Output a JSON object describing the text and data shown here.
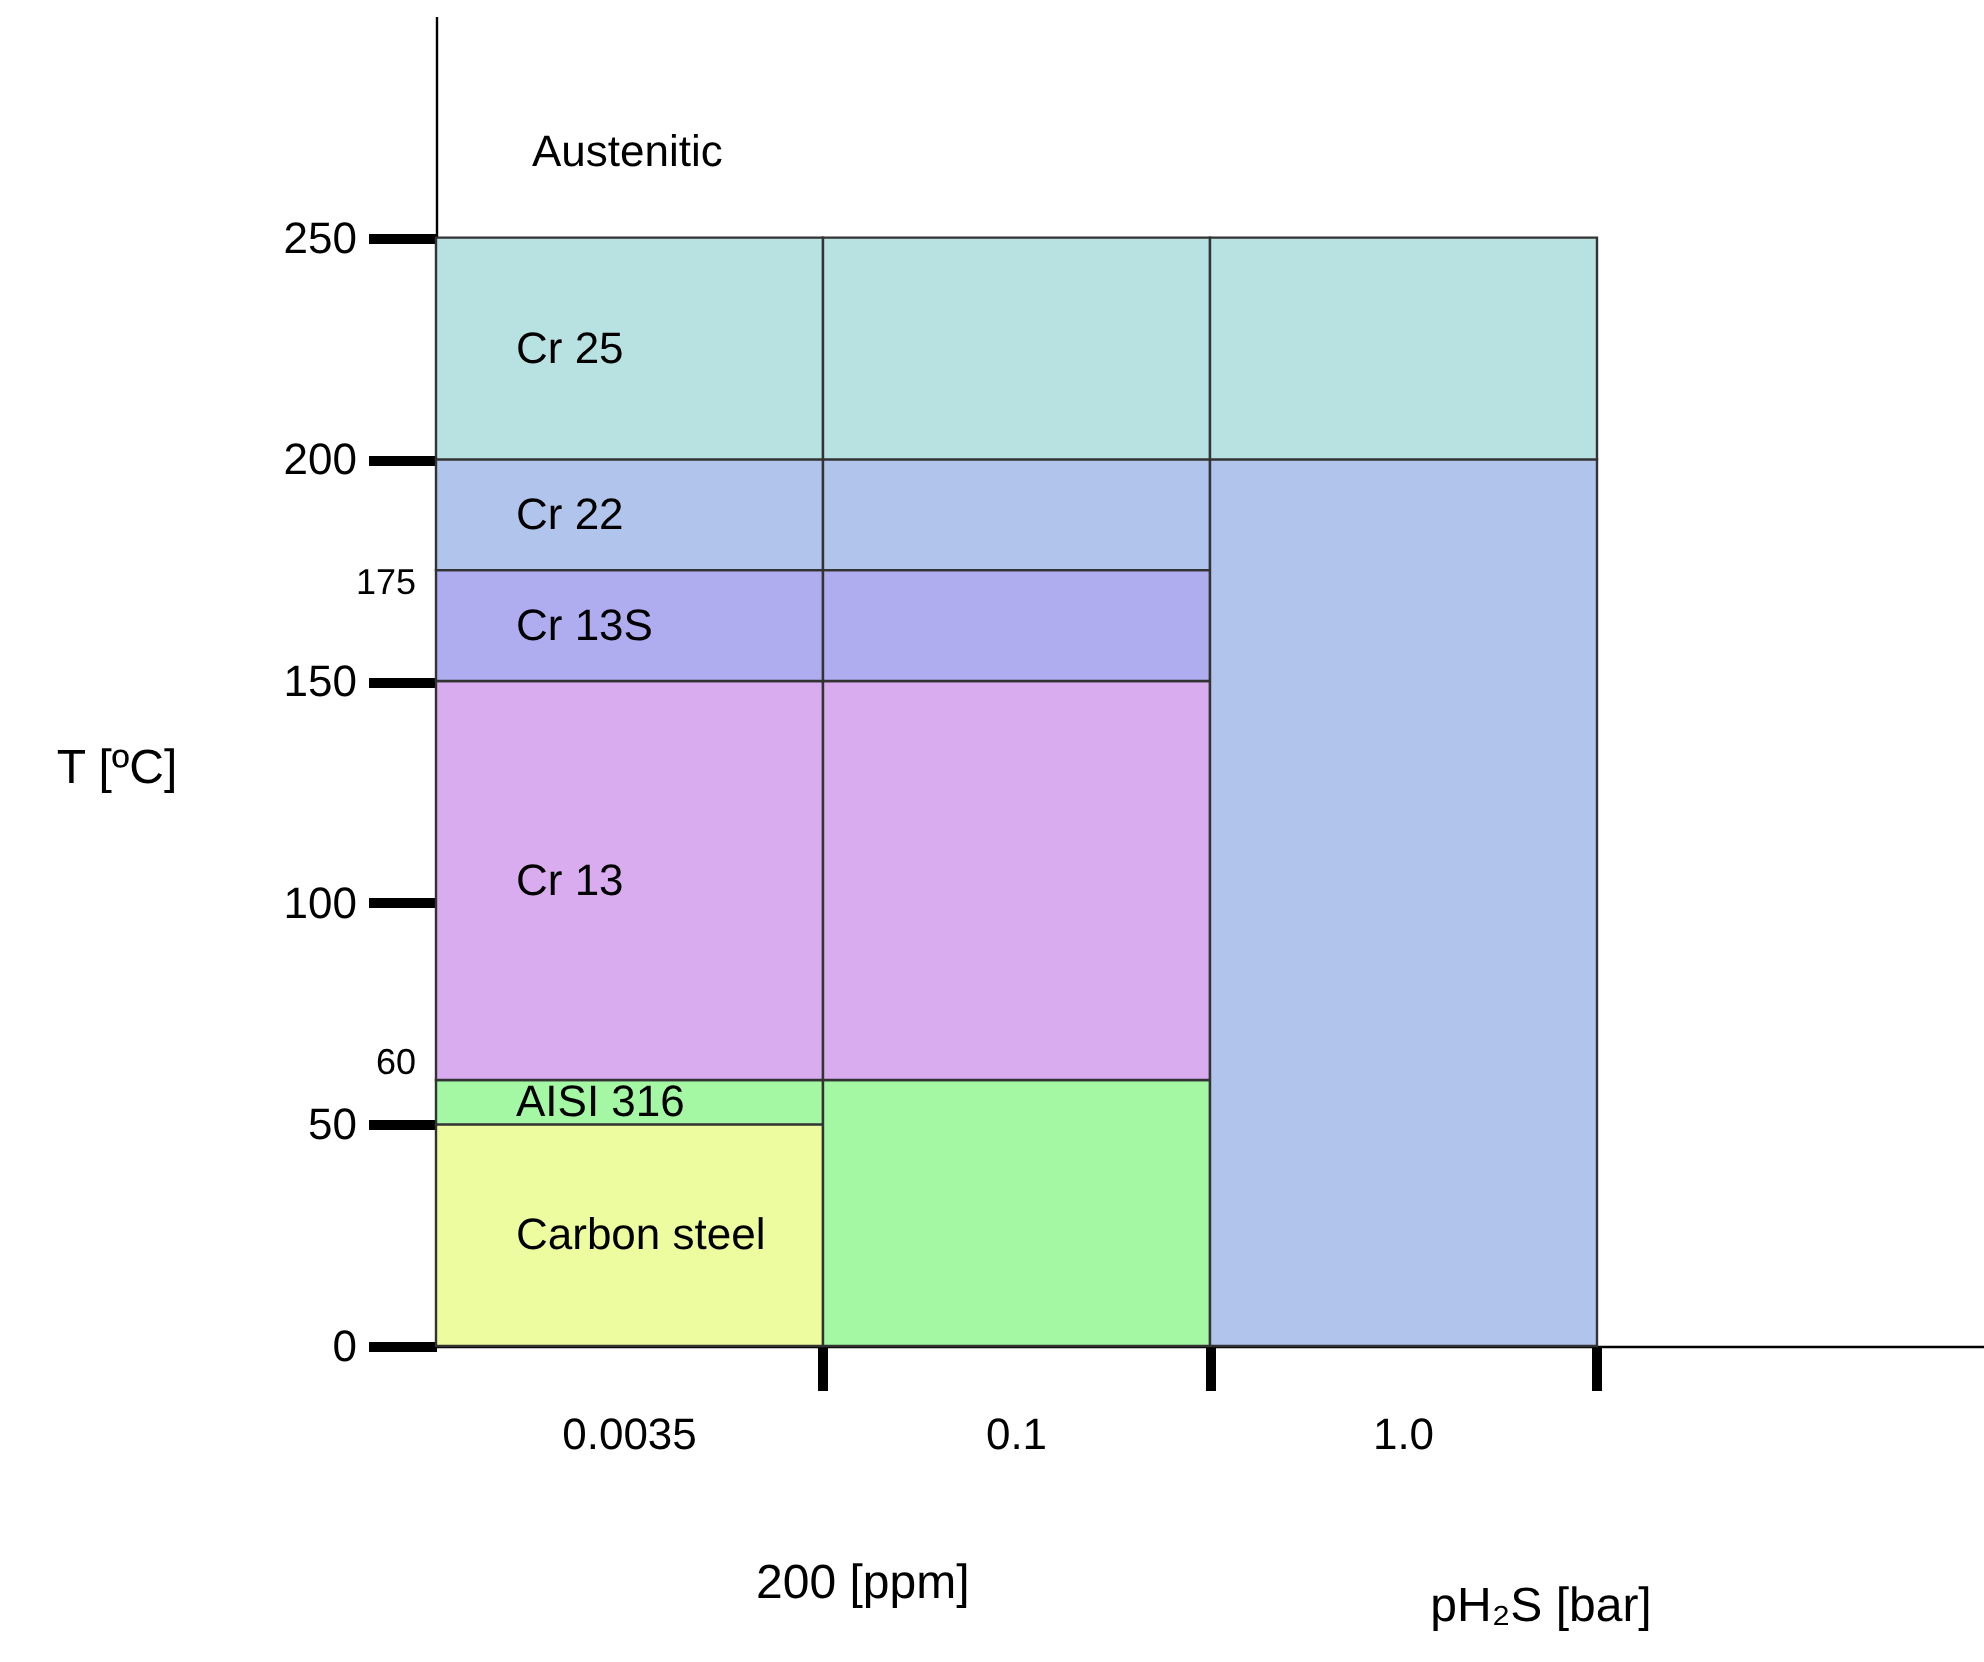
{
  "chart_data": {
    "type": "bar",
    "stacked": true,
    "xlabel": "pH₂S [bar]",
    "ylabel": "T [ºC]",
    "categories": [
      "0.0035",
      "0.1",
      "1.0",
      null
    ],
    "series": [
      {
        "name": "Carbon steel",
        "color": "#eefca0",
        "values": [
          50,
          null,
          null,
          null
        ]
      },
      {
        "name": "AISI 316",
        "color": "#a4f8a4",
        "values": [
          10,
          60,
          null,
          null
        ]
      },
      {
        "name": "Cr 13",
        "color": "#d8acee",
        "values": [
          90,
          90,
          null,
          null
        ]
      },
      {
        "name": "Cr 13S",
        "color": "#b0acf0",
        "values": [
          25,
          25,
          null,
          null
        ]
      },
      {
        "name": "Cr 22",
        "color": "#b0c4ec",
        "values": [
          25,
          25,
          200,
          null
        ]
      },
      {
        "name": "Cr 25",
        "color": "#b8e2e2",
        "values": [
          50,
          50,
          50,
          null
        ]
      }
    ],
    "ylim": [
      0,
      300
    ],
    "yticks": [
      0,
      50,
      100,
      150,
      200,
      250
    ],
    "annotations": [
      "Austenitic",
      "175",
      "60",
      "200 [ppm]"
    ]
  }
}
